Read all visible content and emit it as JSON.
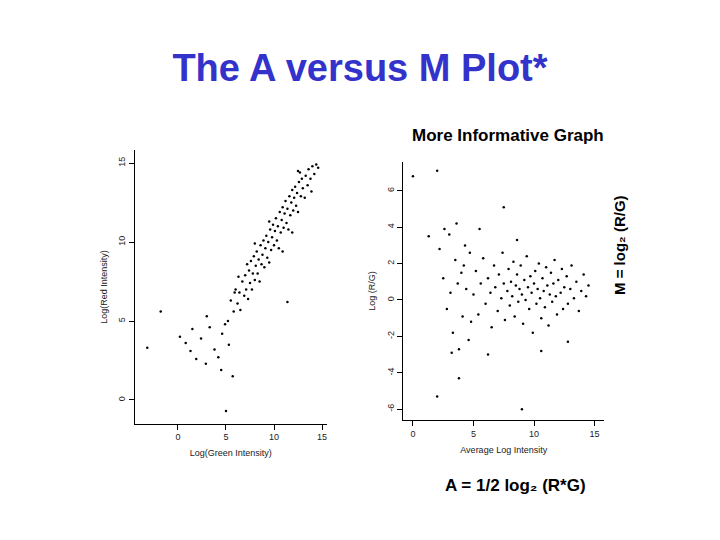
{
  "title": "The A versus M Plot*",
  "subtitle": "More Informative Graph",
  "chart_data": [
    {
      "type": "scatter",
      "x_label": "Log(Green Intensity)",
      "y_label": "Log(Red Intensity)",
      "color": "#000000",
      "marker": "dot",
      "grid": false,
      "xlim": [
        -4.5,
        15.5
      ],
      "ylim": [
        -1.5,
        15.8
      ],
      "xticks": [
        0,
        5,
        10,
        15
      ],
      "yticks": [
        0,
        5,
        10,
        15
      ],
      "x": [
        5.2,
        5.5,
        5.8,
        6.0,
        6.2,
        6.4,
        6.5,
        6.7,
        6.9,
        7.0,
        7.1,
        7.3,
        7.4,
        7.5,
        7.6,
        7.7,
        7.8,
        7.9,
        8.0,
        8.1,
        8.2,
        8.3,
        8.4,
        8.5,
        8.6,
        8.7,
        8.8,
        8.9,
        9.0,
        9.1,
        9.2,
        9.3,
        9.4,
        9.5,
        9.6,
        9.7,
        9.8,
        9.9,
        10.0,
        10.1,
        10.2,
        10.3,
        10.4,
        10.5,
        10.6,
        10.7,
        10.8,
        10.9,
        11.0,
        11.1,
        11.2,
        11.3,
        11.4,
        11.5,
        11.6,
        11.7,
        11.8,
        11.9,
        12.0,
        12.1,
        12.2,
        12.3,
        12.4,
        12.5,
        12.6,
        12.8,
        12.9,
        13.0,
        13.2,
        13.3,
        13.5,
        13.6,
        13.8,
        14.0,
        14.2,
        14.4,
        14.6,
        13.9,
        12.7,
        9.5,
        8.0,
        7.2,
        10.9,
        11.9,
        6.3,
        5.9,
        12.5,
        -3.2,
        -1.8,
        0.2,
        0.8,
        1.3,
        1.9,
        2.4,
        2.9,
        3.3,
        3.8,
        4.2,
        4.5,
        4.6,
        5.0,
        5.7,
        5.3,
        4.9,
        11.4,
        3.0,
        1.5
      ],
      "values": [
        5.0,
        6.3,
        5.6,
        7.0,
        6.1,
        6.8,
        5.7,
        7.5,
        6.6,
        7.9,
        7.0,
        6.4,
        8.2,
        7.4,
        8.8,
        7.0,
        8.0,
        9.1,
        7.6,
        8.5,
        9.4,
        8.0,
        8.9,
        7.5,
        9.8,
        8.6,
        9.2,
        10.1,
        8.4,
        9.6,
        10.4,
        9.0,
        10.0,
        8.7,
        10.8,
        9.5,
        10.3,
        11.1,
        9.8,
        10.7,
        11.5,
        10.1,
        11.0,
        9.6,
        11.9,
        10.6,
        11.4,
        12.2,
        10.9,
        11.8,
        12.6,
        11.2,
        12.1,
        10.8,
        12.9,
        11.7,
        12.5,
        13.3,
        12.0,
        12.8,
        13.5,
        12.3,
        13.1,
        11.9,
        13.8,
        12.9,
        14.0,
        13.4,
        12.8,
        14.2,
        13.6,
        14.6,
        14.0,
        14.8,
        14.3,
        14.9,
        14.7,
        13.2,
        14.4,
        11.3,
        9.9,
        8.6,
        9.4,
        10.6,
        7.8,
        6.8,
        14.5,
        3.3,
        5.6,
        4.0,
        3.6,
        3.1,
        2.6,
        3.9,
        2.3,
        4.6,
        3.2,
        2.7,
        1.9,
        4.2,
        -0.7,
        1.5,
        3.5,
        4.8,
        6.2,
        5.3,
        4.5
      ]
    },
    {
      "type": "scatter",
      "x_label": "Average Log Intensity",
      "y_label": "Log (R/G)",
      "annotations": [
        "A = 1/2 log₂ (R*G)",
        "M = log₂ (R/G)"
      ],
      "color": "#000000",
      "marker": "dot",
      "grid": false,
      "xlim": [
        -0.8,
        15.8
      ],
      "ylim": [
        -6.6,
        7.6
      ],
      "xticks": [
        0,
        5,
        10,
        15
      ],
      "yticks": [
        -6,
        -4,
        -2,
        0,
        2,
        4,
        6
      ],
      "x": [
        5.0,
        5.2,
        5.4,
        5.6,
        5.8,
        6.0,
        6.2,
        6.4,
        6.5,
        6.7,
        6.8,
        7.0,
        7.1,
        7.3,
        7.4,
        7.5,
        7.6,
        7.8,
        7.9,
        8.0,
        8.1,
        8.2,
        8.3,
        8.4,
        8.5,
        8.6,
        8.7,
        8.8,
        8.9,
        9.0,
        9.1,
        9.2,
        9.3,
        9.4,
        9.5,
        9.6,
        9.7,
        9.8,
        9.9,
        10.0,
        10.1,
        10.2,
        10.3,
        10.4,
        10.5,
        10.6,
        10.7,
        10.8,
        10.9,
        11.0,
        11.1,
        11.2,
        11.3,
        11.4,
        11.5,
        11.6,
        11.7,
        11.8,
        11.9,
        12.0,
        12.2,
        12.3,
        12.4,
        12.5,
        12.7,
        12.8,
        13.0,
        13.1,
        13.3,
        13.5,
        13.7,
        13.9,
        14.1,
        14.3,
        14.5,
        2.2,
        2.5,
        2.8,
        3.0,
        3.1,
        3.3,
        3.5,
        3.6,
        3.8,
        4.0,
        4.1,
        4.3,
        4.4,
        4.6,
        4.7,
        4.8,
        3.2,
        2.6,
        4.2,
        3.7,
        0.0,
        2.0,
        2.0,
        3.8,
        9.0,
        7.5,
        5.5,
        8.6,
        10.6,
        12.8,
        6.2,
        1.3
      ],
      "values": [
        0.3,
        1.6,
        -0.8,
        0.9,
        2.3,
        -0.2,
        1.2,
        0.4,
        -1.5,
        1.9,
        0.7,
        -0.6,
        1.4,
        0.1,
        2.6,
        0.9,
        -1.1,
        0.5,
        1.7,
        -0.3,
        1.0,
        0.2,
        2.1,
        -0.9,
        0.8,
        1.4,
        -0.1,
        0.6,
        1.9,
        0.3,
        -1.3,
        1.1,
        0.0,
        2.4,
        0.7,
        -0.5,
        1.3,
        0.4,
        -1.8,
        0.9,
        1.6,
        -0.2,
        0.6,
        2.0,
        0.1,
        -1.0,
        1.2,
        0.5,
        -0.4,
        1.8,
        0.8,
        -1.4,
        0.3,
        1.5,
        -0.1,
        0.9,
        2.2,
        0.2,
        -0.8,
        1.1,
        0.4,
        1.7,
        -0.5,
        0.7,
        1.3,
        -0.2,
        0.6,
        1.9,
        0.1,
        1.0,
        -0.6,
        0.5,
        1.4,
        0.2,
        0.8,
        2.8,
        1.2,
        -0.5,
        3.6,
        0.4,
        -1.8,
        2.2,
        4.2,
        -2.7,
        1.5,
        -0.9,
        3.0,
        0.6,
        -2.2,
        2.6,
        -1.2,
        -2.9,
        3.9,
        1.9,
        0.9,
        6.8,
        7.1,
        -5.3,
        -4.3,
        -6.0,
        5.1,
        3.9,
        3.3,
        -2.8,
        -2.3,
        -3.0,
        3.5
      ]
    }
  ]
}
